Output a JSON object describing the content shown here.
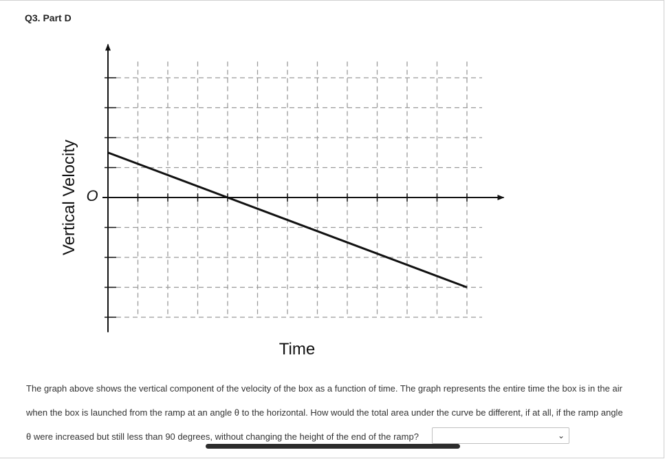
{
  "question": {
    "title": "Q3. Part D",
    "prompt_lines": [
      "The graph above shows the vertical component of the velocity of the box as a function of time. The graph represents the entire time the box is in the air",
      "when the box is launched from the ramp at an angle θ to the horizontal. How would the total area under the curve be different, if at all, if the ramp angle",
      "θ were increased but still less than 90 degrees, without changing the height of the end of the ramp?"
    ],
    "answer_selected": "",
    "chevron_icon": "chevron-down-icon"
  },
  "chart_data": {
    "type": "line",
    "xlabel": "Time",
    "ylabel": "Vertical Velocity",
    "origin_label": "O",
    "xlim": [
      0,
      13
    ],
    "ylim": [
      -4,
      5
    ],
    "grid": true,
    "series": [
      {
        "values": [
          [
            0,
            1.5
          ],
          [
            4,
            0
          ],
          [
            12,
            -3
          ]
        ]
      }
    ]
  }
}
